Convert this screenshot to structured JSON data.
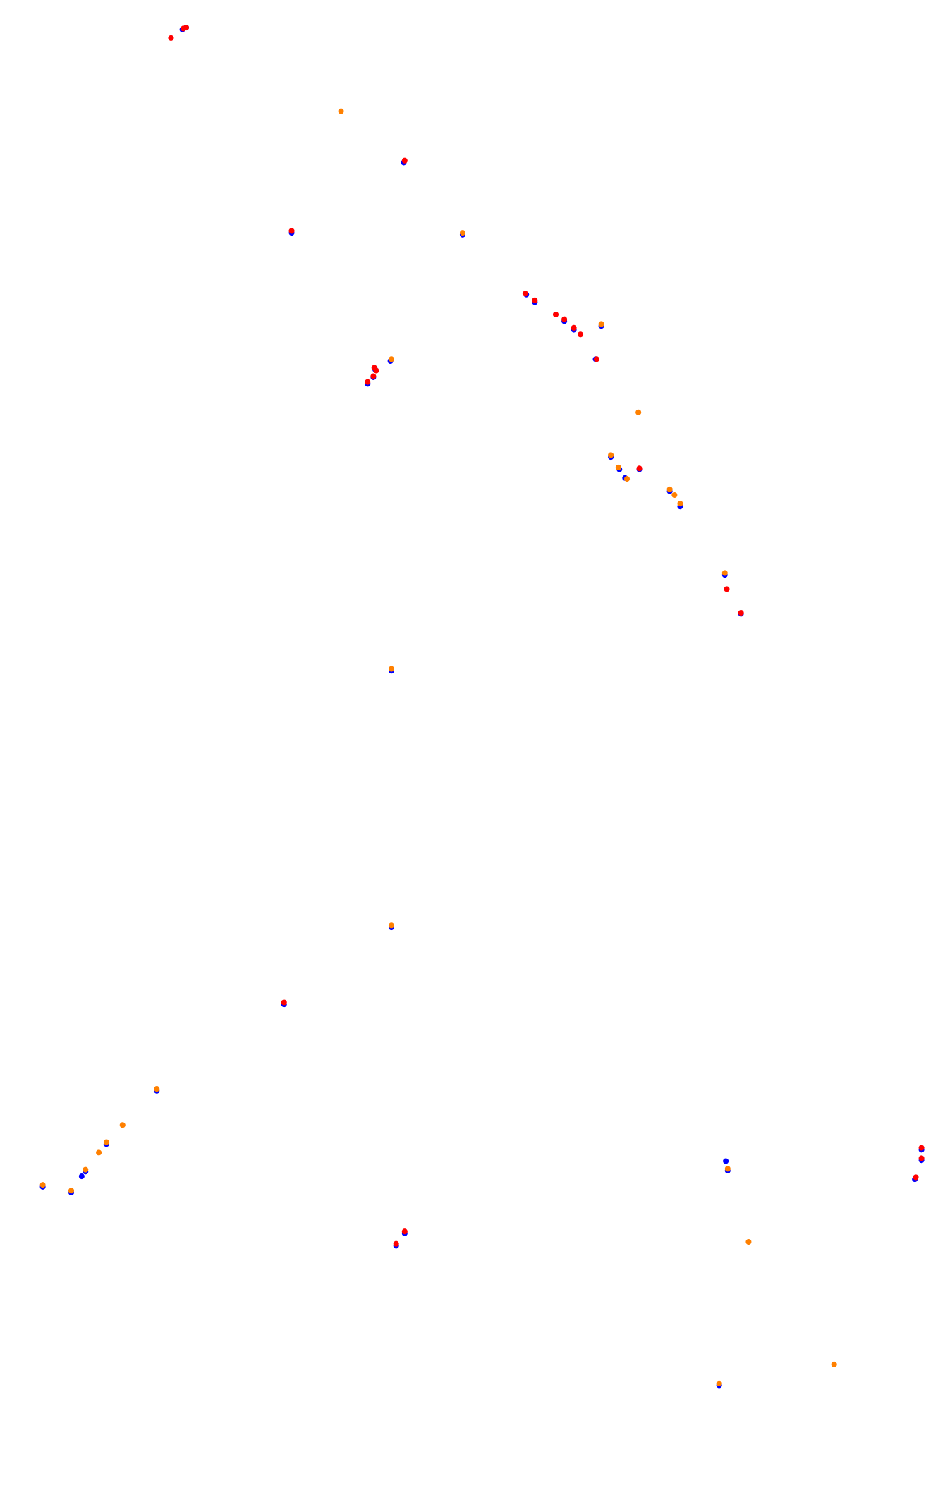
{
  "chart_data": {
    "type": "scatter",
    "title": "",
    "xlabel": "",
    "ylabel": "",
    "grid": false,
    "axes_visible": false,
    "legend": "none",
    "xlim": [
      0,
      1000
    ],
    "ylim": [
      0,
      1566
    ],
    "y_direction": "down",
    "point_radius": 3,
    "series": [
      {
        "color": "#0000ff",
        "points": [
          {
            "x": 192,
            "y": 31
          },
          {
            "x": 196,
            "y": 29
          },
          {
            "x": 307,
            "y": 245
          },
          {
            "x": 425,
            "y": 171
          },
          {
            "x": 487,
            "y": 247
          },
          {
            "x": 554,
            "y": 310
          },
          {
            "x": 563,
            "y": 318
          },
          {
            "x": 594,
            "y": 338
          },
          {
            "x": 604,
            "y": 347
          },
          {
            "x": 627,
            "y": 378
          },
          {
            "x": 633,
            "y": 343
          },
          {
            "x": 411,
            "y": 380
          },
          {
            "x": 395,
            "y": 389
          },
          {
            "x": 393,
            "y": 397
          },
          {
            "x": 387,
            "y": 404
          },
          {
            "x": 643,
            "y": 481
          },
          {
            "x": 652,
            "y": 494
          },
          {
            "x": 658,
            "y": 503
          },
          {
            "x": 673,
            "y": 494
          },
          {
            "x": 705,
            "y": 517
          },
          {
            "x": 716,
            "y": 533
          },
          {
            "x": 763,
            "y": 605
          },
          {
            "x": 780,
            "y": 646
          },
          {
            "x": 412,
            "y": 706
          },
          {
            "x": 412,
            "y": 976
          },
          {
            "x": 299,
            "y": 1057
          },
          {
            "x": 165,
            "y": 1148
          },
          {
            "x": 112,
            "y": 1204
          },
          {
            "x": 90,
            "y": 1233
          },
          {
            "x": 86,
            "y": 1238
          },
          {
            "x": 45,
            "y": 1249
          },
          {
            "x": 75,
            "y": 1255
          },
          {
            "x": 426,
            "y": 1298
          },
          {
            "x": 417,
            "y": 1311
          },
          {
            "x": 764,
            "y": 1222
          },
          {
            "x": 766,
            "y": 1232
          },
          {
            "x": 970,
            "y": 1210
          },
          {
            "x": 970,
            "y": 1221
          },
          {
            "x": 963,
            "y": 1241
          },
          {
            "x": 757,
            "y": 1458
          }
        ]
      },
      {
        "color": "#ff0000",
        "points": [
          {
            "x": 180,
            "y": 40
          },
          {
            "x": 193,
            "y": 30
          },
          {
            "x": 196,
            "y": 29
          },
          {
            "x": 307,
            "y": 243
          },
          {
            "x": 426,
            "y": 169
          },
          {
            "x": 553,
            "y": 309
          },
          {
            "x": 563,
            "y": 316
          },
          {
            "x": 585,
            "y": 331
          },
          {
            "x": 594,
            "y": 336
          },
          {
            "x": 604,
            "y": 345
          },
          {
            "x": 611,
            "y": 352
          },
          {
            "x": 628,
            "y": 378
          },
          {
            "x": 394,
            "y": 387
          },
          {
            "x": 396,
            "y": 390
          },
          {
            "x": 393,
            "y": 396
          },
          {
            "x": 387,
            "y": 402
          },
          {
            "x": 673,
            "y": 493
          },
          {
            "x": 765,
            "y": 620
          },
          {
            "x": 780,
            "y": 645
          },
          {
            "x": 299,
            "y": 1055
          },
          {
            "x": 426,
            "y": 1296
          },
          {
            "x": 417,
            "y": 1309
          },
          {
            "x": 970,
            "y": 1208
          },
          {
            "x": 970,
            "y": 1219
          },
          {
            "x": 964,
            "y": 1239
          }
        ]
      },
      {
        "color": "#ff8000",
        "points": [
          {
            "x": 359,
            "y": 117
          },
          {
            "x": 487,
            "y": 245
          },
          {
            "x": 633,
            "y": 341
          },
          {
            "x": 412,
            "y": 378
          },
          {
            "x": 672,
            "y": 434
          },
          {
            "x": 643,
            "y": 479
          },
          {
            "x": 651,
            "y": 492
          },
          {
            "x": 660,
            "y": 504
          },
          {
            "x": 705,
            "y": 515
          },
          {
            "x": 710,
            "y": 521
          },
          {
            "x": 716,
            "y": 530
          },
          {
            "x": 763,
            "y": 603
          },
          {
            "x": 412,
            "y": 704
          },
          {
            "x": 412,
            "y": 974
          },
          {
            "x": 165,
            "y": 1146
          },
          {
            "x": 129,
            "y": 1184
          },
          {
            "x": 112,
            "y": 1202
          },
          {
            "x": 104,
            "y": 1213
          },
          {
            "x": 90,
            "y": 1231
          },
          {
            "x": 45,
            "y": 1247
          },
          {
            "x": 75,
            "y": 1253
          },
          {
            "x": 766,
            "y": 1230
          },
          {
            "x": 788,
            "y": 1307
          },
          {
            "x": 878,
            "y": 1436
          },
          {
            "x": 757,
            "y": 1456
          }
        ]
      }
    ]
  }
}
